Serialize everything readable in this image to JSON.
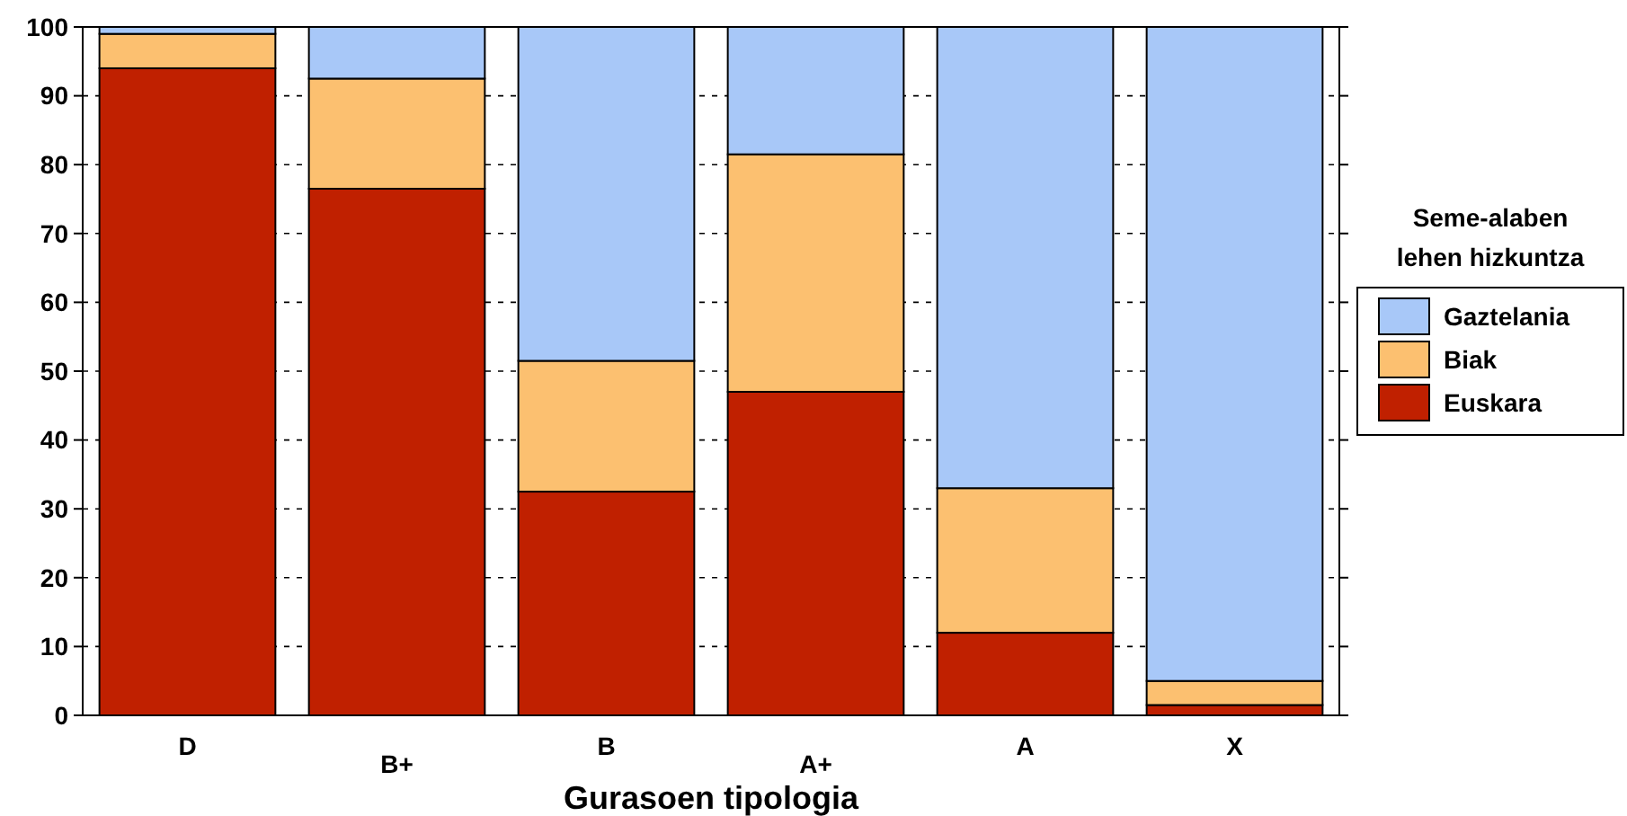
{
  "chart_data": {
    "type": "bar",
    "stacked": true,
    "xlabel": "Gurasoen tipologia",
    "legend_title": "Seme-alaben lehen hizkuntza",
    "legend": "right",
    "grid": "y",
    "categories": [
      "D",
      "B+",
      "B",
      "A+",
      "A",
      "X"
    ],
    "series": [
      {
        "name": "Euskara",
        "color": "#c02000",
        "values": [
          94,
          76.5,
          32.5,
          47,
          12,
          1.5
        ]
      },
      {
        "name": "Biak",
        "color": "#fcc070",
        "values": [
          5,
          16,
          19,
          34.5,
          21,
          3.5
        ]
      },
      {
        "name": "Gaztelania",
        "color": "#a8c8f8",
        "values": [
          1,
          7.5,
          48.5,
          18.5,
          67,
          95
        ]
      }
    ],
    "ylim": [
      0,
      100
    ],
    "yticks": [
      0,
      10,
      20,
      30,
      40,
      50,
      60,
      70,
      80,
      90,
      100
    ]
  }
}
